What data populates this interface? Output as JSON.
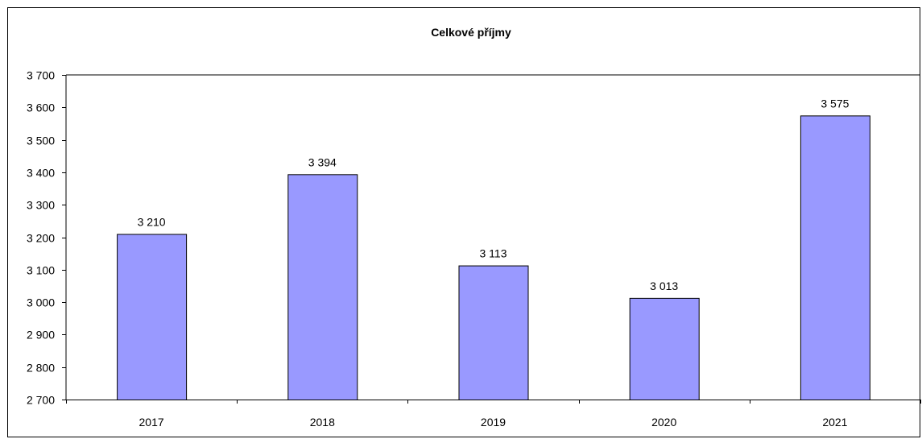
{
  "chart_data": {
    "type": "bar",
    "title": "Celkové příjmy",
    "xlabel": "",
    "ylabel": "",
    "categories": [
      "2017",
      "2018",
      "2019",
      "2020",
      "2021"
    ],
    "values": [
      3210,
      3394,
      3113,
      3013,
      3575
    ],
    "value_labels": [
      "3 210",
      "3 394",
      "3 113",
      "3 013",
      "3 575"
    ],
    "ylim": [
      2700,
      3700
    ],
    "yticks": [
      2700,
      2800,
      2900,
      3000,
      3100,
      3200,
      3300,
      3400,
      3500,
      3600,
      3700
    ],
    "ytick_labels": [
      "2 700",
      "2 800",
      "2 900",
      "3 000",
      "3 100",
      "3 200",
      "3 300",
      "3 400",
      "3 500",
      "3 600",
      "3 700"
    ],
    "grid": false,
    "legend": "none",
    "bar_color": "#9999ff",
    "bar_edge_color": "#000000"
  }
}
